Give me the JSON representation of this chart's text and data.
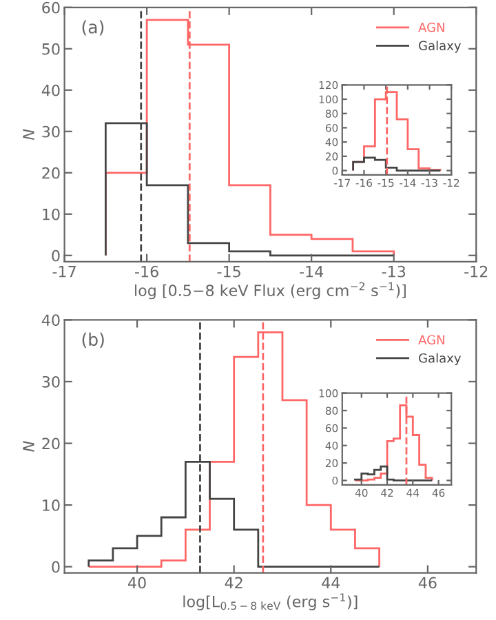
{
  "chart_data": [
    {
      "type": "histogram",
      "xlabel": "log [0.5−8 keV Flux (erg cm$^{−2}$ s$^{−1}$)]",
      "ylabel": "N",
      "annotations": [
        "(a)"
      ],
      "bins": [
        -16.5,
        -16,
        -15.5,
        -15,
        -14.5,
        -14,
        -13.5,
        -13
      ],
      "series": [
        {
          "name": "AGN",
          "color": "#ff6666",
          "values": [
            20,
            57,
            51,
            17,
            5,
            4,
            1
          ]
        },
        {
          "name": "Galaxy",
          "color": "#444444",
          "values": [
            32,
            17,
            3,
            1,
            0,
            0,
            0
          ]
        }
      ],
      "ref_lines": [
        {
          "axis": "x",
          "value": -16.07,
          "color": "#444444",
          "line_style": "dashed"
        },
        {
          "axis": "x",
          "value": -15.48,
          "color": "#ff6666",
          "line_style": "dashed"
        }
      ],
      "xlim": [
        -17,
        -12
      ],
      "ylim": [
        -1.5,
        60
      ],
      "xticks": [
        -17,
        -16,
        -15,
        -14,
        -13,
        -12
      ],
      "yticks": [
        0,
        10,
        20,
        30,
        40,
        50,
        60
      ],
      "legend": "top right"
    },
    {
      "type": "histogram",
      "bins": [
        -16.5,
        -16,
        -15.5,
        -15,
        -14.5,
        -14,
        -13.5,
        -13,
        -12.5
      ],
      "series": [
        {
          "color": "#ff6666",
          "values": [
            12,
            34,
            100,
            110,
            72,
            30,
            3,
            1
          ]
        },
        {
          "color": "#444444",
          "values": [
            12,
            18,
            15,
            4,
            0,
            0,
            0,
            0
          ]
        }
      ],
      "ref_lines": [
        {
          "axis": "x",
          "value": -14.95,
          "color": "#ff6666",
          "line_style": "dashed"
        }
      ],
      "xlim": [
        -17,
        -12
      ],
      "ylim": [
        -6,
        120
      ],
      "xticks": [
        -17,
        -16,
        -15,
        -14,
        -13,
        -12
      ],
      "yticks": [
        0,
        20,
        40,
        60,
        80,
        100,
        120
      ]
    },
    {
      "type": "histogram",
      "xlabel": "log[L$_{0.5−8 keV}$ (erg s$^{−1}$)]",
      "ylabel": "N",
      "annotations": [
        "(b)"
      ],
      "bins": [
        39,
        39.5,
        40,
        40.5,
        41,
        41.5,
        42,
        42.5,
        43,
        43.5,
        44,
        44.5,
        45
      ],
      "series": [
        {
          "name": "AGN",
          "color": "#ff6666",
          "values": [
            0,
            0,
            0,
            1,
            6,
            17,
            34,
            38,
            27,
            10,
            6,
            3
          ]
        },
        {
          "name": "Galaxy",
          "color": "#444444",
          "values": [
            1,
            3,
            5,
            8,
            17,
            11,
            6,
            0,
            0,
            0,
            0,
            0
          ]
        }
      ],
      "ref_lines": [
        {
          "axis": "x",
          "value": 41.3,
          "color": "#444444",
          "line_style": "dashed"
        },
        {
          "axis": "x",
          "value": 42.6,
          "color": "#ff6666",
          "line_style": "dashed"
        }
      ],
      "xlim": [
        38.5,
        47
      ],
      "ylim": [
        -1,
        40
      ],
      "xticks": [
        40,
        42,
        44,
        46
      ],
      "yticks": [
        0,
        10,
        20,
        30,
        40
      ],
      "legend": "top right"
    },
    {
      "type": "histogram",
      "bins": [
        39.5,
        40,
        40.5,
        41,
        41.5,
        42,
        42.5,
        43,
        43.5,
        44,
        44.5,
        45,
        45.5
      ],
      "series": [
        {
          "color": "#ff6666",
          "values": [
            0,
            0,
            1,
            3,
            8,
            45,
            48,
            86,
            73,
            52,
            18,
            3
          ]
        },
        {
          "color": "#444444",
          "values": [
            1,
            8,
            7,
            12,
            16,
            1,
            0,
            0,
            0,
            0,
            0,
            0
          ]
        }
      ],
      "ref_lines": [
        {
          "axis": "x",
          "value": 43.5,
          "color": "#ff6666",
          "line_style": "dashed"
        }
      ],
      "xlim": [
        38.5,
        47
      ],
      "ylim": [
        -5,
        100
      ],
      "xticks": [
        40,
        42,
        44,
        46
      ],
      "yticks": [
        0,
        20,
        40,
        60,
        80,
        100
      ]
    }
  ]
}
